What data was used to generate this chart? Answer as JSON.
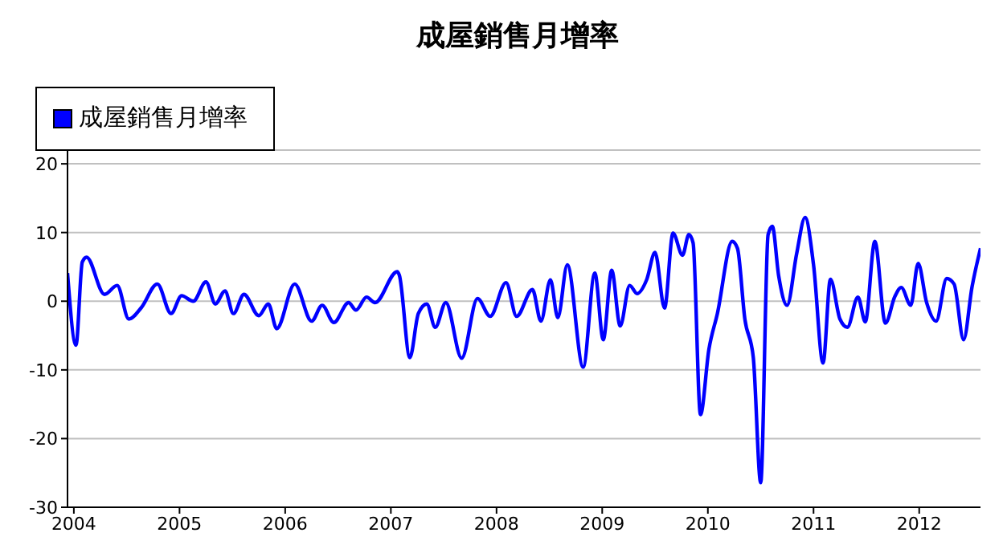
{
  "chart_data": {
    "type": "line",
    "title": "成屋銷售月增率",
    "legend": "top left",
    "grid": "y",
    "marker": "none",
    "line_style": "solid",
    "x": [
      2003.94,
      2004.02,
      2004.08,
      2004.12,
      2004.29,
      2004.41,
      2004.52,
      2004.64,
      2004.79,
      2004.92,
      2005.02,
      2005.13,
      2005.25,
      2005.34,
      2005.43,
      2005.51,
      2005.61,
      2005.75,
      2005.84,
      2005.92,
      2006.09,
      2006.25,
      2006.35,
      2006.46,
      2006.6,
      2006.67,
      2006.77,
      2006.85,
      2007.06,
      2007.08,
      2007.18,
      2007.26,
      2007.34,
      2007.42,
      2007.52,
      2007.67,
      2007.82,
      2007.94,
      2008.09,
      2008.19,
      2008.34,
      2008.42,
      2008.51,
      2008.58,
      2008.67,
      2008.82,
      2008.93,
      2009.01,
      2009.09,
      2009.17,
      2009.26,
      2009.33,
      2009.42,
      2009.5,
      2009.59,
      2009.67,
      2009.76,
      2009.82,
      2009.86,
      2009.93,
      2010.01,
      2010.09,
      2010.23,
      2010.28,
      2010.35,
      2010.43,
      2010.5,
      2010.57,
      2010.61,
      2010.67,
      2010.75,
      2010.84,
      2010.92,
      2011.0,
      2011.09,
      2011.16,
      2011.25,
      2011.32,
      2011.42,
      2011.49,
      2011.58,
      2011.68,
      2011.77,
      2011.83,
      2011.92,
      2011.99,
      2012.07,
      2012.16,
      2012.26,
      2012.33,
      2012.42,
      2012.5,
      2012.58
    ],
    "xlim": [
      2003.94,
      2012.58
    ],
    "xticks": [
      2004,
      2005,
      2006,
      2007,
      2008,
      2009,
      2010,
      2011,
      2012
    ],
    "ylim": [
      -30,
      22
    ],
    "yticks": [
      -30,
      -20,
      -10,
      0,
      10,
      20
    ],
    "series": [
      {
        "name": "成屋銷售月增率",
        "color": "#0000ff",
        "values": [
          4.1,
          -6.4,
          5.7,
          6.4,
          1.0,
          2.3,
          -2.6,
          -0.9,
          2.5,
          -1.8,
          0.8,
          0,
          2.8,
          -0.4,
          1.5,
          -1.8,
          1.0,
          -2.1,
          -0.4,
          -4.0,
          2.5,
          -2.9,
          -0.6,
          -3.1,
          -0.2,
          -1.3,
          0.6,
          -0.2,
          4.3,
          3.8,
          -8.2,
          -1.8,
          -0.4,
          -3.8,
          -0.2,
          -8.3,
          0.4,
          -2.2,
          2.7,
          -2.2,
          1.7,
          -2.9,
          3.1,
          -2.4,
          5.3,
          -9.6,
          4.1,
          -5.6,
          4.5,
          -3.6,
          2.3,
          1.1,
          3.1,
          7.1,
          -1.0,
          9.9,
          6.7,
          9.7,
          8.5,
          -16.5,
          -7.0,
          -1.8,
          8.7,
          7.7,
          -2.6,
          -8.2,
          -26.4,
          9.7,
          10.9,
          3.7,
          -0.6,
          6.9,
          12.2,
          5.3,
          -9.0,
          3.2,
          -2.6,
          -3.8,
          0.6,
          -3.0,
          8.7,
          -3.2,
          0.7,
          2.0,
          -0.6,
          5.5,
          -0.2,
          -2.9,
          3.3,
          2.5,
          -5.6,
          2.1,
          7.7
        ]
      }
    ]
  }
}
